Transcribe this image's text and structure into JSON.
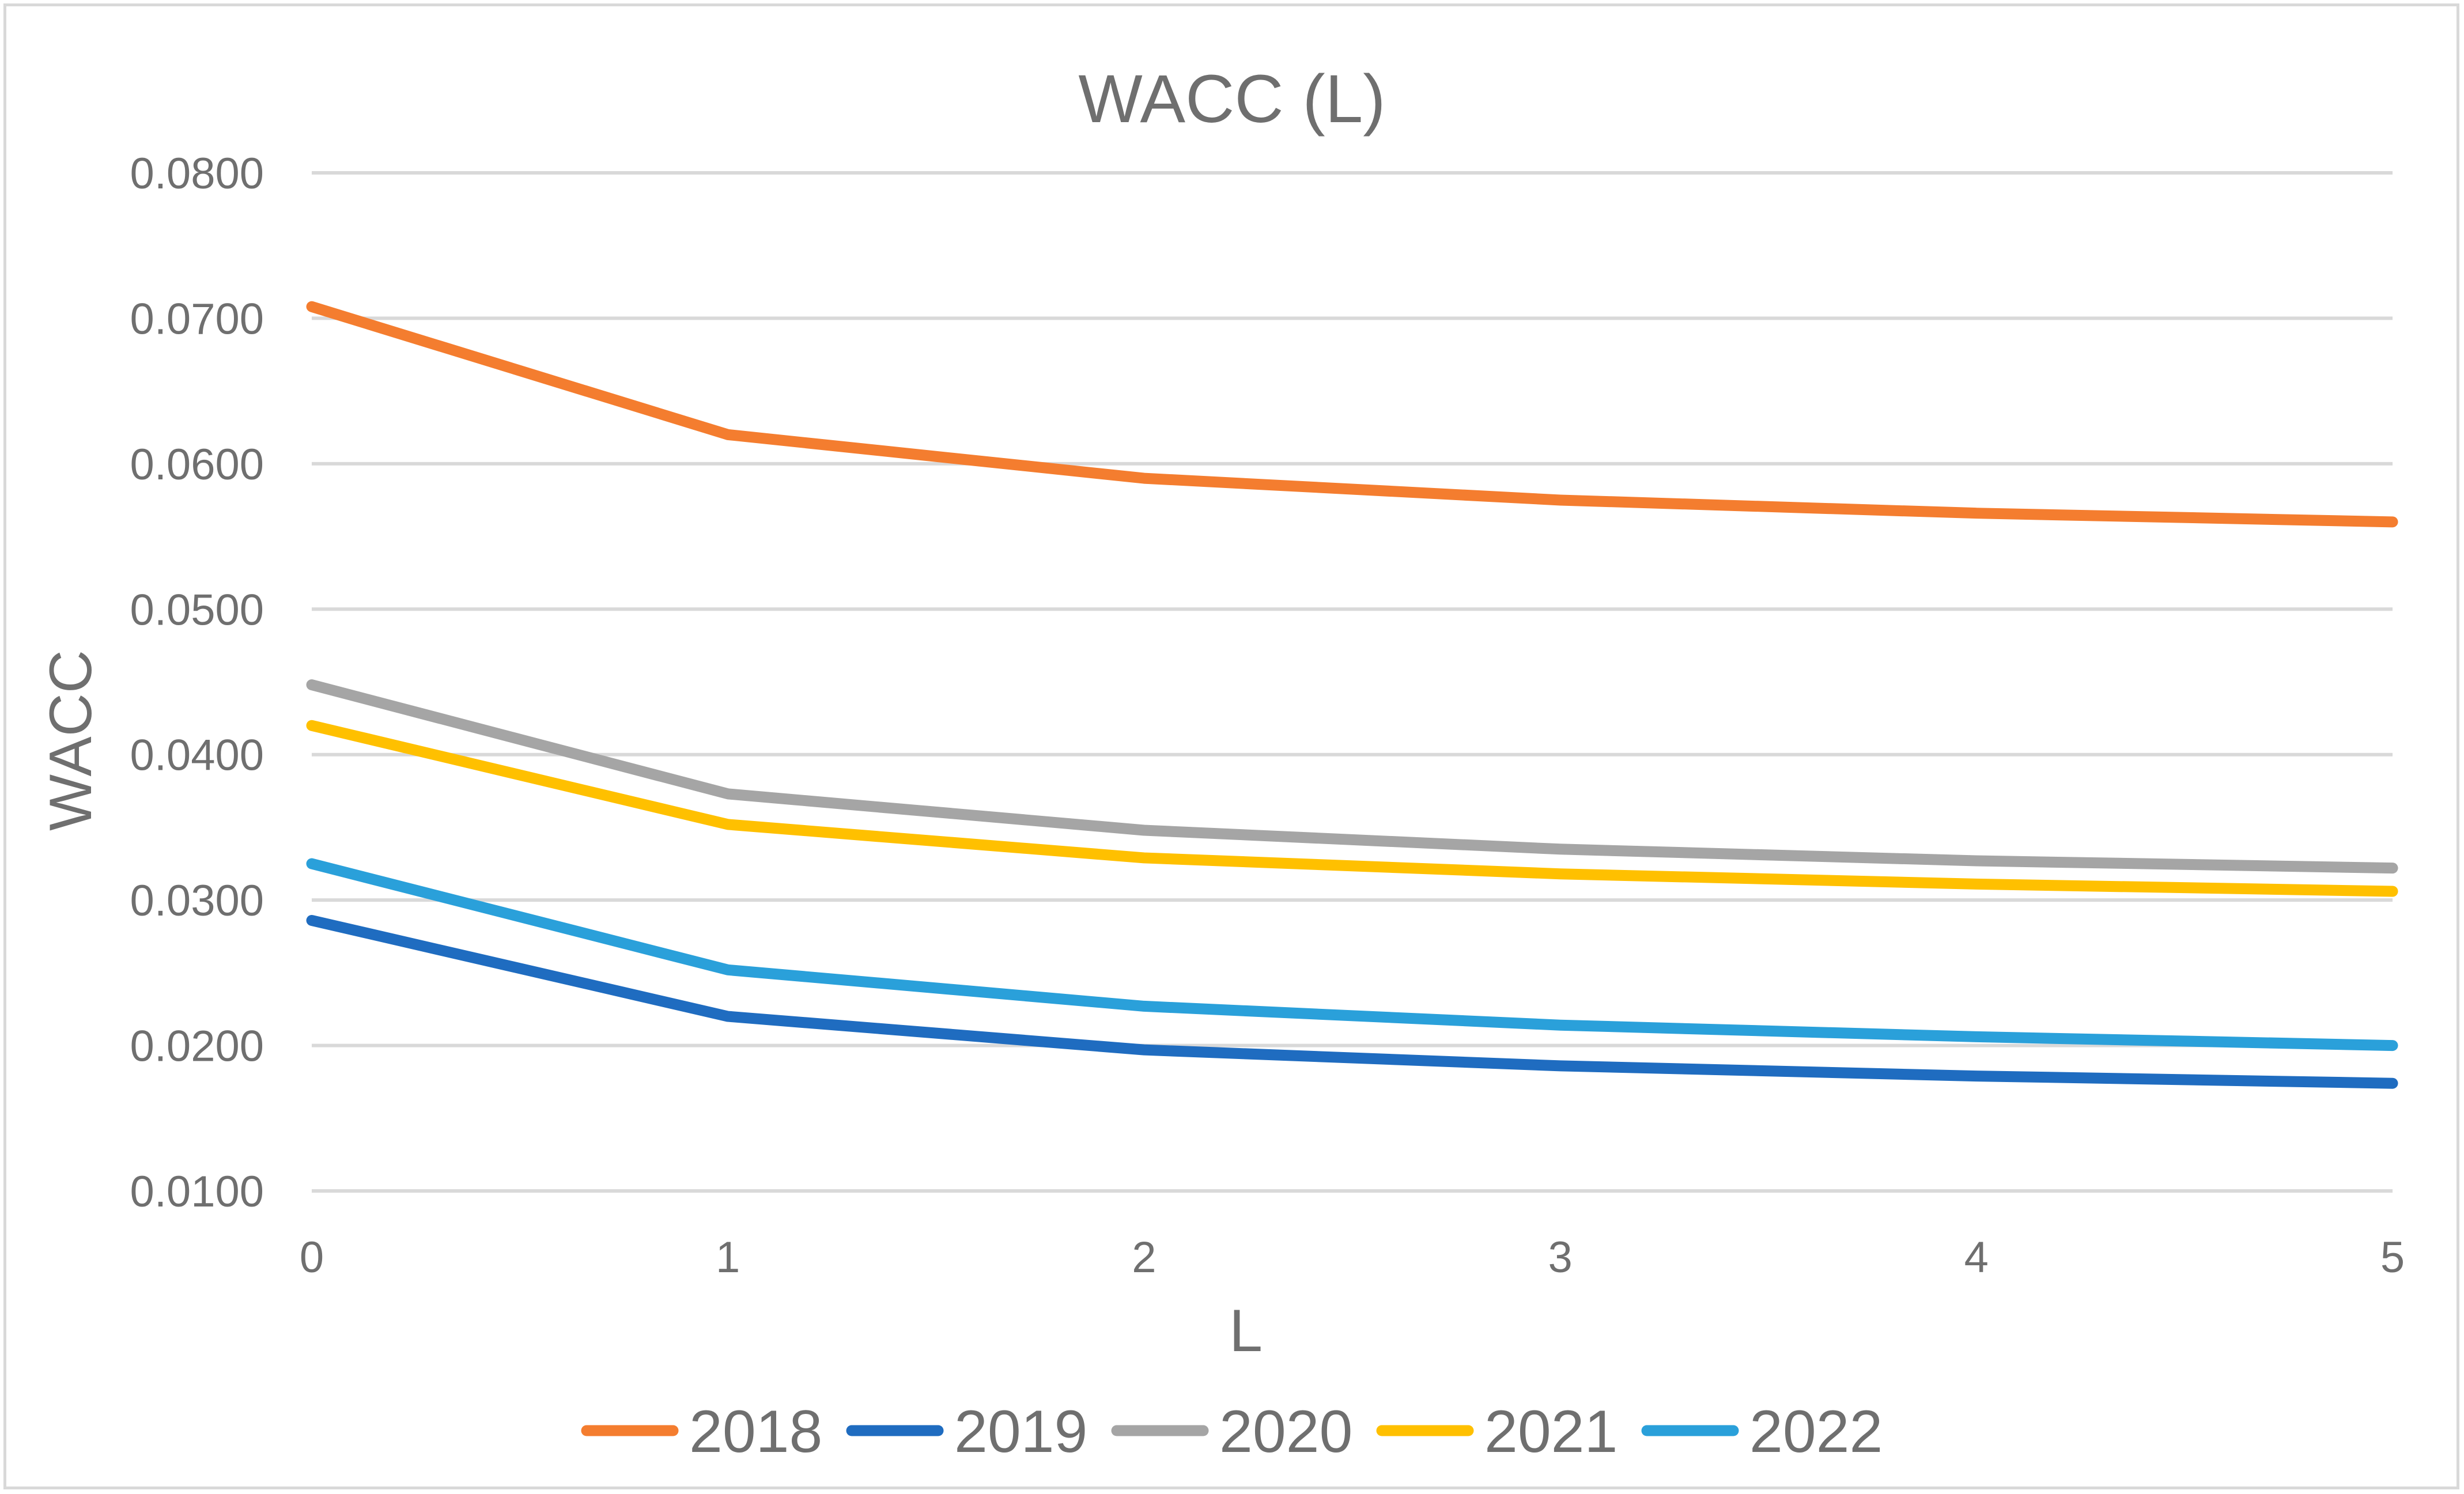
{
  "chart_data": {
    "type": "line",
    "title": "WACC (L)",
    "xlabel": "L",
    "ylabel": "WACC",
    "x": [
      0,
      1,
      2,
      3,
      4,
      5
    ],
    "x_tick_labels": [
      "0",
      "1",
      "2",
      "3",
      "4",
      "5"
    ],
    "xlim": [
      0,
      5
    ],
    "ylim": [
      0.01,
      0.08
    ],
    "y_ticks": [
      0.01,
      0.02,
      0.03,
      0.04,
      0.05,
      0.06,
      0.07,
      0.08
    ],
    "y_tick_labels": [
      "0.0100",
      "0.0200",
      "0.0300",
      "0.0400",
      "0.0500",
      "0.0600",
      "0.0700",
      "0.0800"
    ],
    "grid": true,
    "legend_position": "bottom",
    "series": [
      {
        "name": "2018",
        "color": "#f47d2f",
        "values": [
          0.0708,
          0.062,
          0.059,
          0.0575,
          0.0566,
          0.056
        ]
      },
      {
        "name": "2019",
        "color": "#1f6cc0",
        "values": [
          0.0286,
          0.022,
          0.0197,
          0.0186,
          0.0179,
          0.0174
        ]
      },
      {
        "name": "2020",
        "color": "#a5a5a5",
        "values": [
          0.0448,
          0.0373,
          0.0348,
          0.0335,
          0.0327,
          0.0322
        ]
      },
      {
        "name": "2021",
        "color": "#ffc000",
        "values": [
          0.042,
          0.0352,
          0.0329,
          0.0318,
          0.0311,
          0.0306
        ]
      },
      {
        "name": "2022",
        "color": "#2aa0da",
        "values": [
          0.0325,
          0.0252,
          0.0227,
          0.0214,
          0.0206,
          0.02
        ]
      }
    ]
  }
}
